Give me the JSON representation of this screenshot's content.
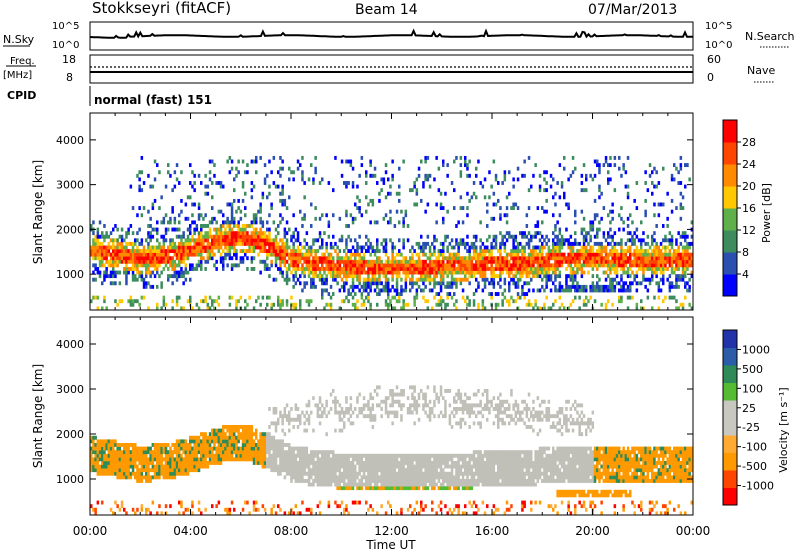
{
  "header": {
    "station": "Stokkseyri (fitACF)",
    "beam": "Beam 14",
    "date": "07/Mar/2013"
  },
  "strip_panels": {
    "nsky_label": "N.Sky",
    "nsearch_label": "N.Search",
    "nsky_ticks": [
      "10^5",
      "10^0"
    ],
    "freq_label_1": "Freq.",
    "freq_label_2": "[MHz]",
    "freq_ticks": [
      "18",
      "8"
    ],
    "nave_label": "Nave",
    "nave_ticks": [
      "60",
      "0"
    ],
    "cpid_label": "CPID",
    "cpid_value": "normal (fast) 151"
  },
  "colors": {
    "power_scale": [
      "#0000ff",
      "#2a4fb0",
      "#3d8c5e",
      "#5fb04a",
      "#ffc800",
      "#ff8a00",
      "#ff4500",
      "#ff0000"
    ],
    "velocity_scale": [
      "#ff0000",
      "#ff4400",
      "#ff9900",
      "#ffaa33",
      "#c8c8c0",
      "#c8c8c0",
      "#55bb33",
      "#2e8b57",
      "#2a5ca8",
      "#2233aa"
    ],
    "ground_scatter": "#c0c0b8"
  },
  "chart_data": [
    {
      "type": "heatmap",
      "name": "power-panel",
      "xlabel": "",
      "ylabel": "Slant Range [km]",
      "x_range_hours": [
        0,
        24
      ],
      "ylim": [
        200,
        4600
      ],
      "y_ticks": [
        "4000",
        "3000",
        "2000",
        "1000"
      ],
      "colorbar": {
        "label": "Power [dB]",
        "ticks": [
          "28",
          "24",
          "20",
          "16",
          "12",
          "8",
          "4"
        ],
        "range": [
          0,
          32
        ]
      },
      "echo_band": {
        "center_km": [
          1500,
          1400,
          1300,
          1350,
          1500,
          1700,
          1800,
          1600,
          1300,
          1200,
          1150,
          1100,
          1100,
          1100,
          1150,
          1150,
          1200,
          1200,
          1250,
          1300,
          1300,
          1300,
          1250,
          1250,
          1300
        ],
        "hours": [
          0,
          1,
          2,
          3,
          4,
          5,
          6,
          7,
          8,
          9,
          10,
          11,
          12,
          13,
          14,
          15,
          16,
          17,
          18,
          19,
          20,
          21,
          22,
          23,
          24
        ],
        "peak_power_db": 28
      }
    },
    {
      "type": "heatmap",
      "name": "velocity-panel",
      "xlabel": "Time UT",
      "ylabel": "Slant Range [km]",
      "x_ticks": [
        "00:00",
        "04:00",
        "08:00",
        "12:00",
        "16:00",
        "20:00",
        "00:00"
      ],
      "x_range_hours": [
        0,
        24
      ],
      "ylim": [
        200,
        4600
      ],
      "y_ticks": [
        "4000",
        "3000",
        "2000",
        "1000"
      ],
      "colorbar": {
        "label": "Velocity [m s⁻¹]",
        "ticks": [
          "1000",
          "500",
          "100",
          "25",
          "-25",
          "-100",
          "-500",
          "-1000"
        ]
      }
    }
  ]
}
